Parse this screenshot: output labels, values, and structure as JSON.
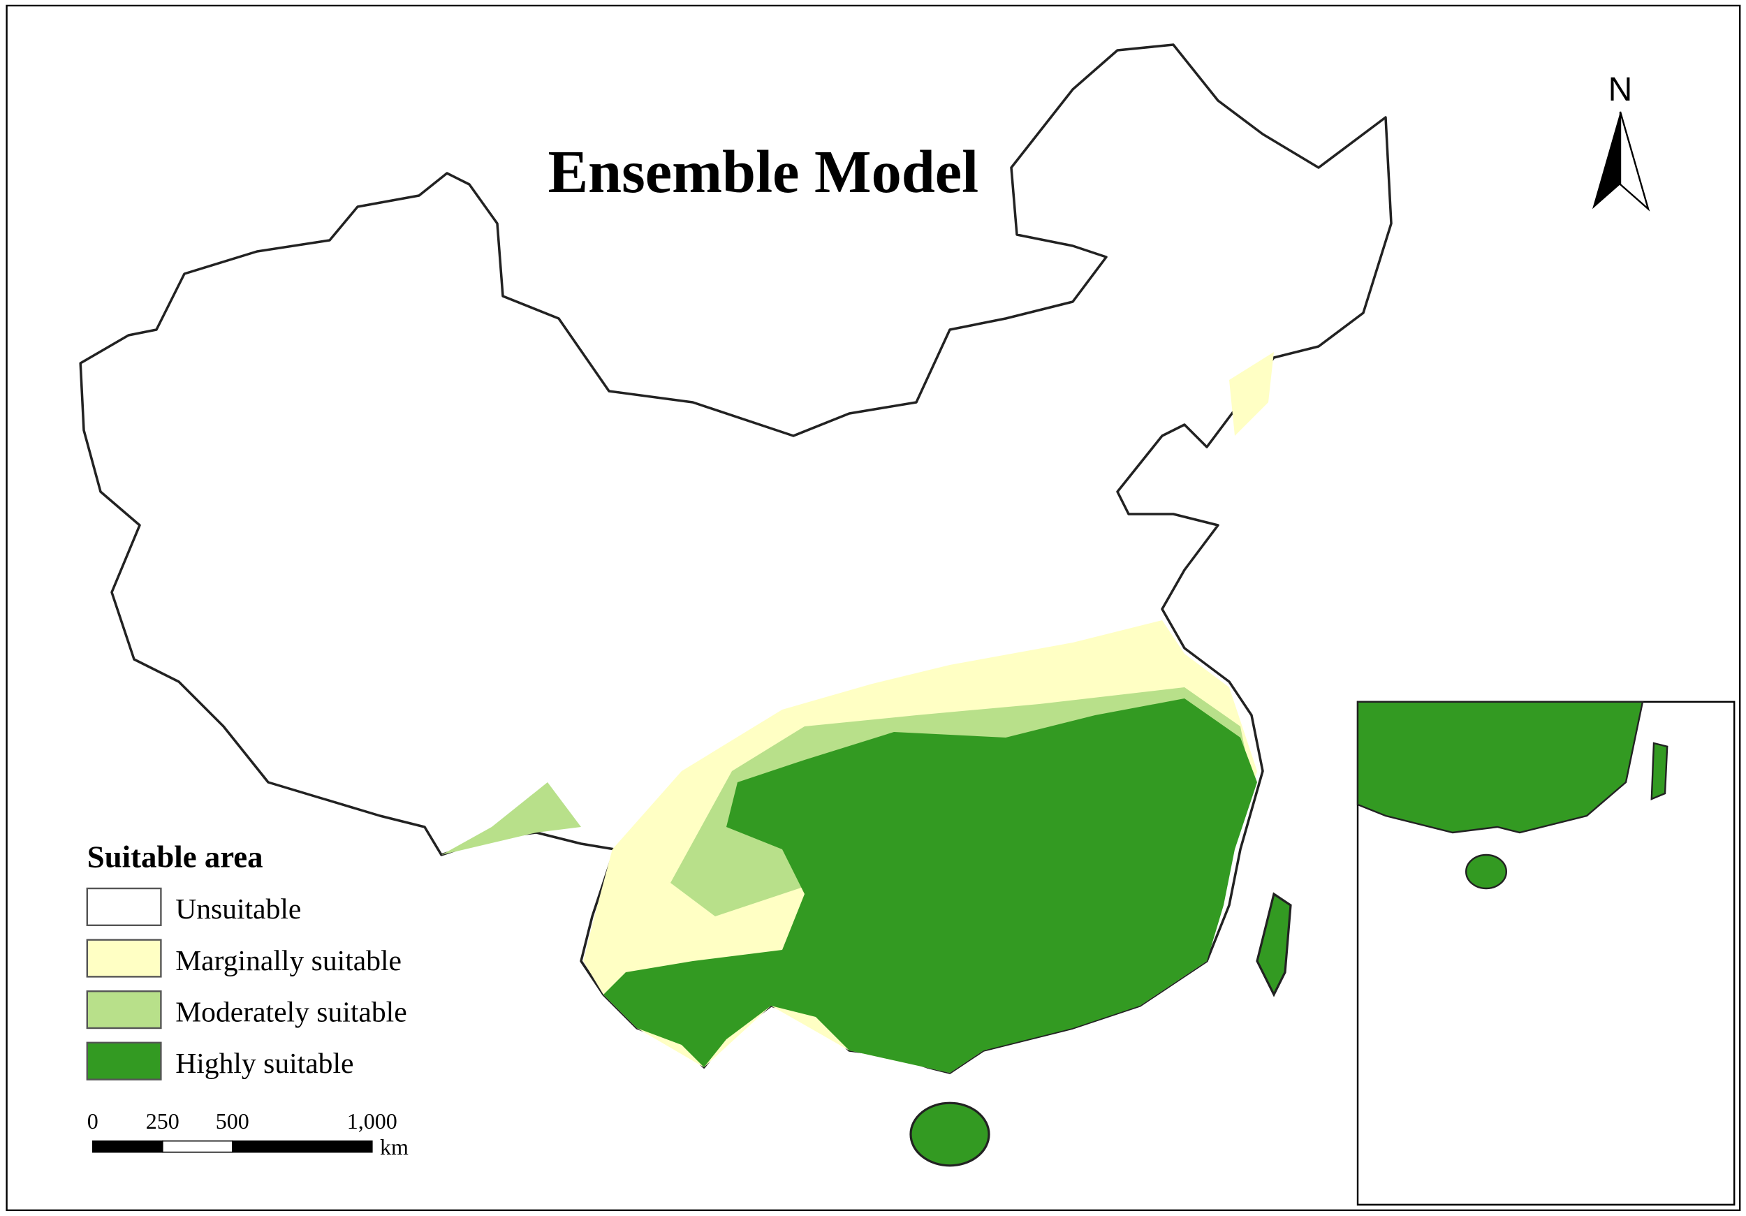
{
  "title": "Ensemble Model",
  "north_arrow": {
    "label": "N"
  },
  "legend": {
    "title": "Suitable area",
    "items": [
      {
        "label": "Unsuitable",
        "color": "#ffffff"
      },
      {
        "label": "Marginally suitable",
        "color": "#ffffc4"
      },
      {
        "label": "Moderately suitable",
        "color": "#b8e08a"
      },
      {
        "label": "Highly suitable",
        "color": "#339a22"
      }
    ]
  },
  "scale_bar": {
    "unit": "km",
    "ticks": [
      0,
      250,
      500,
      {
        "value": 1000,
        "label": "1,000"
      }
    ]
  }
}
